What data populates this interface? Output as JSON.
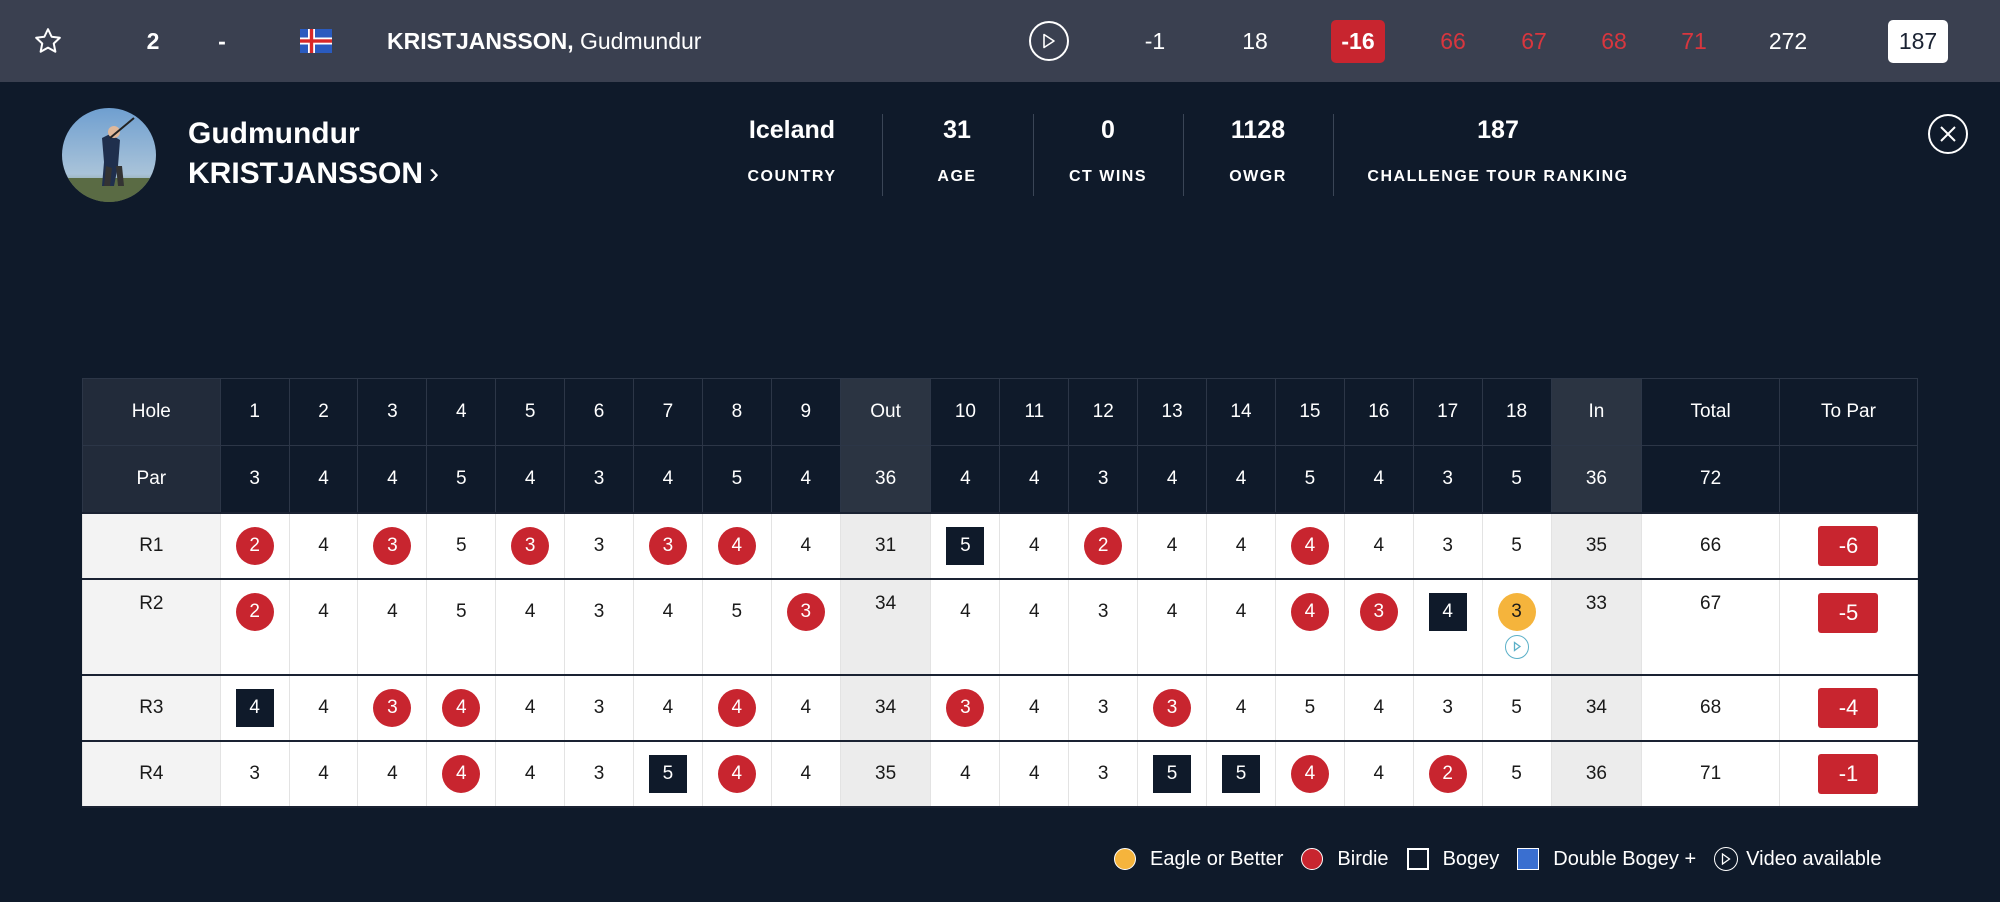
{
  "topbar": {
    "position": "2",
    "movement": "-",
    "player_last": "KRISTJANSSON,",
    "player_first": "Gudmundur",
    "today": "-1",
    "thru": "18",
    "to_par": "-16",
    "rounds": [
      "66",
      "67",
      "68",
      "71"
    ],
    "total": "272",
    "ranking": "187"
  },
  "player": {
    "first_name": "Gudmundur",
    "last_name": "KRISTJANSSON",
    "stats": [
      {
        "value": "Iceland",
        "label": "COUNTRY"
      },
      {
        "value": "31",
        "label": "AGE"
      },
      {
        "value": "0",
        "label": "CT WINS"
      },
      {
        "value": "1128",
        "label": "OWGR"
      },
      {
        "value": "187",
        "label": "CHALLENGE TOUR RANKING"
      }
    ]
  },
  "scorecard": {
    "hole_label": "Hole",
    "par_label": "Par",
    "holes": [
      "1",
      "2",
      "3",
      "4",
      "5",
      "6",
      "7",
      "8",
      "9",
      "Out",
      "10",
      "11",
      "12",
      "13",
      "14",
      "15",
      "16",
      "17",
      "18",
      "In",
      "Total",
      "To Par"
    ],
    "pars": [
      "3",
      "4",
      "4",
      "5",
      "4",
      "3",
      "4",
      "5",
      "4",
      "36",
      "4",
      "4",
      "3",
      "4",
      "4",
      "5",
      "4",
      "3",
      "5",
      "36",
      "72",
      ""
    ],
    "rounds": [
      {
        "label": "R1",
        "scores": [
          "2",
          "4",
          "3",
          "5",
          "3",
          "3",
          "3",
          "4",
          "4",
          "31",
          "5",
          "4",
          "2",
          "4",
          "4",
          "4",
          "4",
          "3",
          "5",
          "35",
          "66"
        ],
        "to_par": "-6"
      },
      {
        "label": "R2",
        "scores": [
          "2",
          "4",
          "4",
          "5",
          "4",
          "3",
          "4",
          "5",
          "3",
          "34",
          "4",
          "4",
          "3",
          "4",
          "4",
          "4",
          "3",
          "4",
          "3",
          "33",
          "67"
        ],
        "to_par": "-5"
      },
      {
        "label": "R3",
        "scores": [
          "4",
          "4",
          "3",
          "4",
          "4",
          "3",
          "4",
          "4",
          "4",
          "34",
          "3",
          "4",
          "3",
          "3",
          "4",
          "5",
          "4",
          "3",
          "5",
          "34",
          "68"
        ],
        "to_par": "-4"
      },
      {
        "label": "R4",
        "scores": [
          "3",
          "4",
          "4",
          "4",
          "4",
          "3",
          "5",
          "4",
          "4",
          "35",
          "4",
          "4",
          "3",
          "5",
          "5",
          "4",
          "4",
          "2",
          "5",
          "36",
          "71"
        ],
        "to_par": "-1"
      }
    ]
  },
  "legend": [
    {
      "label": "Eagle or Better",
      "color": "#f5b43c"
    },
    {
      "label": "Birdie",
      "color": "#c8252f"
    },
    {
      "label": "Bogey",
      "color": "#0f1a2a"
    },
    {
      "label": "Double Bogey +",
      "color": "#3a6fd0"
    },
    {
      "label": "Video available",
      "color": "#ffffff"
    }
  ],
  "colors": {
    "birdie": "#c8252f",
    "eagle": "#f5b43c",
    "bogey": "#0f1a2a",
    "double_bogey": "#3a6fd0",
    "background": "#0f1a2a",
    "topbar": "#3a4050"
  }
}
